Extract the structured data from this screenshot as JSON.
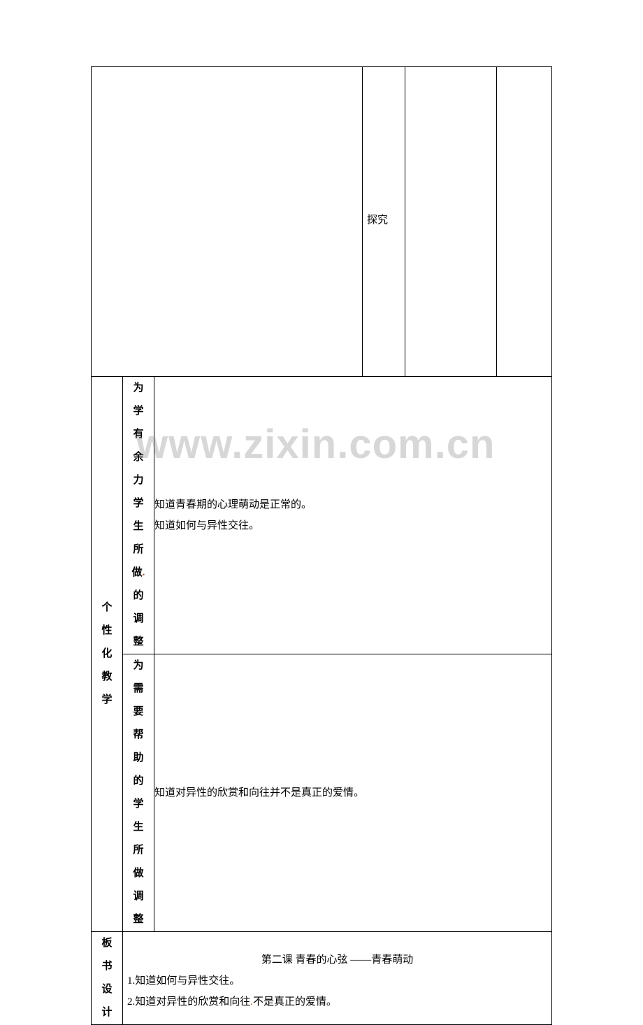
{
  "top_row": {
    "probe_text": "探究"
  },
  "section1": {
    "vertical_label": [
      "个",
      "性",
      "化",
      "教",
      "学"
    ],
    "sub1_label": [
      "为",
      "学",
      "有",
      "余",
      "力",
      "学",
      "生",
      "所",
      "做",
      "的",
      "调",
      "整"
    ],
    "sub1_dot_index": 9,
    "sub1_content": [
      "知道青春期的心理萌动是正常的。",
      "知道如何与异性交往。"
    ],
    "sub2_label": [
      "为",
      "需",
      "要",
      "帮",
      "助",
      "的",
      "学",
      "生",
      "所",
      "做",
      "调",
      "整"
    ],
    "sub2_content": [
      "知道对异性的欣赏和向往并不是真正的爱情。"
    ]
  },
  "section2": {
    "vertical_label": [
      "板",
      "书",
      "设",
      "计"
    ],
    "title": "第二课 青春的心弦 ——青春萌动",
    "lines": [
      {
        "pre": "1.知道如何与异性交往。",
        "dot": false
      },
      {
        "pre": "2.知道对异性的欣赏和向往",
        "dot": true,
        "post": "不是真正的爱情。"
      }
    ]
  },
  "watermark": "www.zixin.com.cn",
  "colors": {
    "border": "#000000",
    "text": "#000000",
    "dot": "#a0522d",
    "bg": "#ffffff",
    "wm": "rgba(140,140,140,0.35)"
  },
  "typography": {
    "body_fontsize": 15,
    "wm_fontsize": 58,
    "line_height": 2.0
  }
}
